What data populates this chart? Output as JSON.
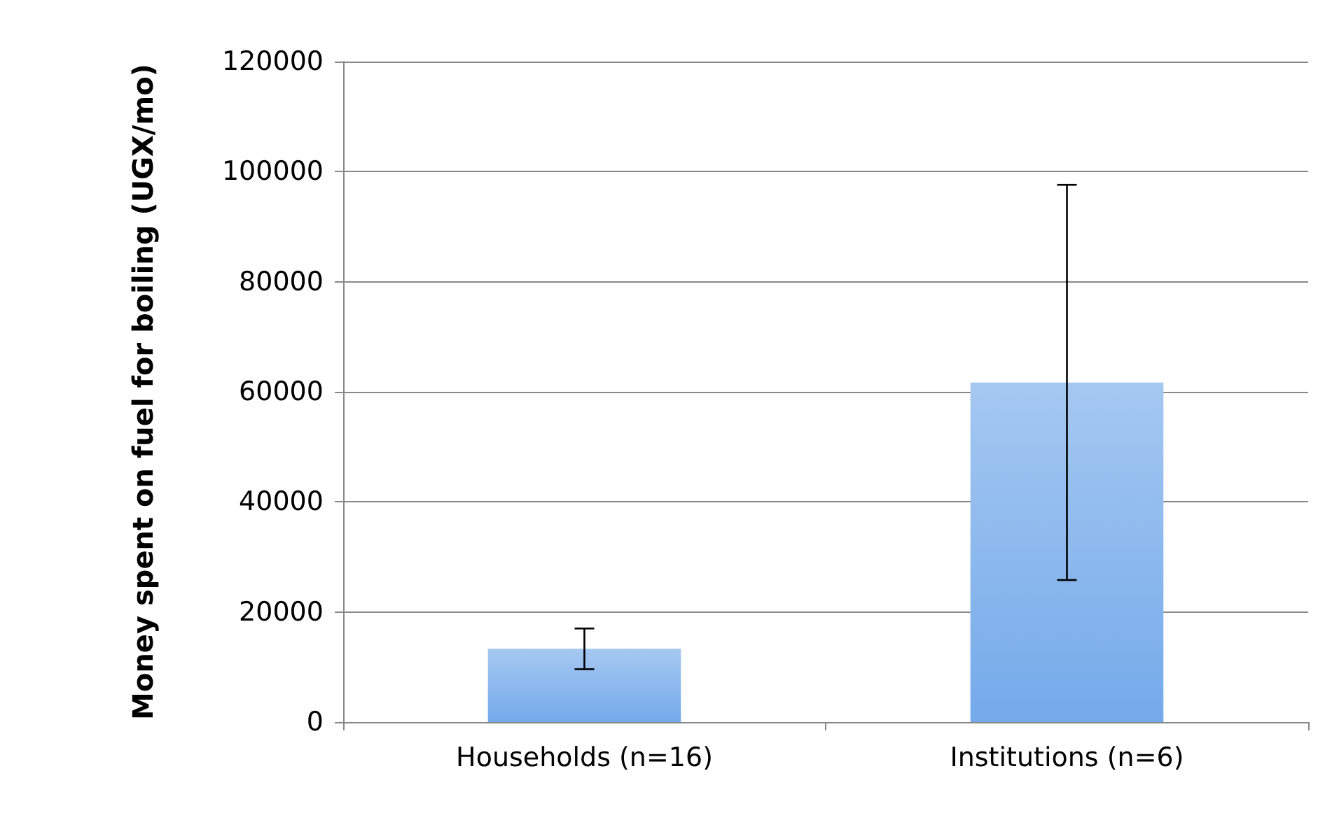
{
  "chart_data": {
    "type": "bar",
    "ylabel": "Money spent on fuel for boiling (UGX/mo)",
    "categories": [
      "Households (n=16)",
      "Institutions (n=6)"
    ],
    "values": [
      13300,
      61700
    ],
    "errors": [
      3700,
      35900
    ],
    "color": "#74aaea",
    "ylim": [
      0,
      120000
    ],
    "yticks": [
      0,
      20000,
      40000,
      60000,
      80000,
      100000,
      120000
    ],
    "grid": "y"
  }
}
